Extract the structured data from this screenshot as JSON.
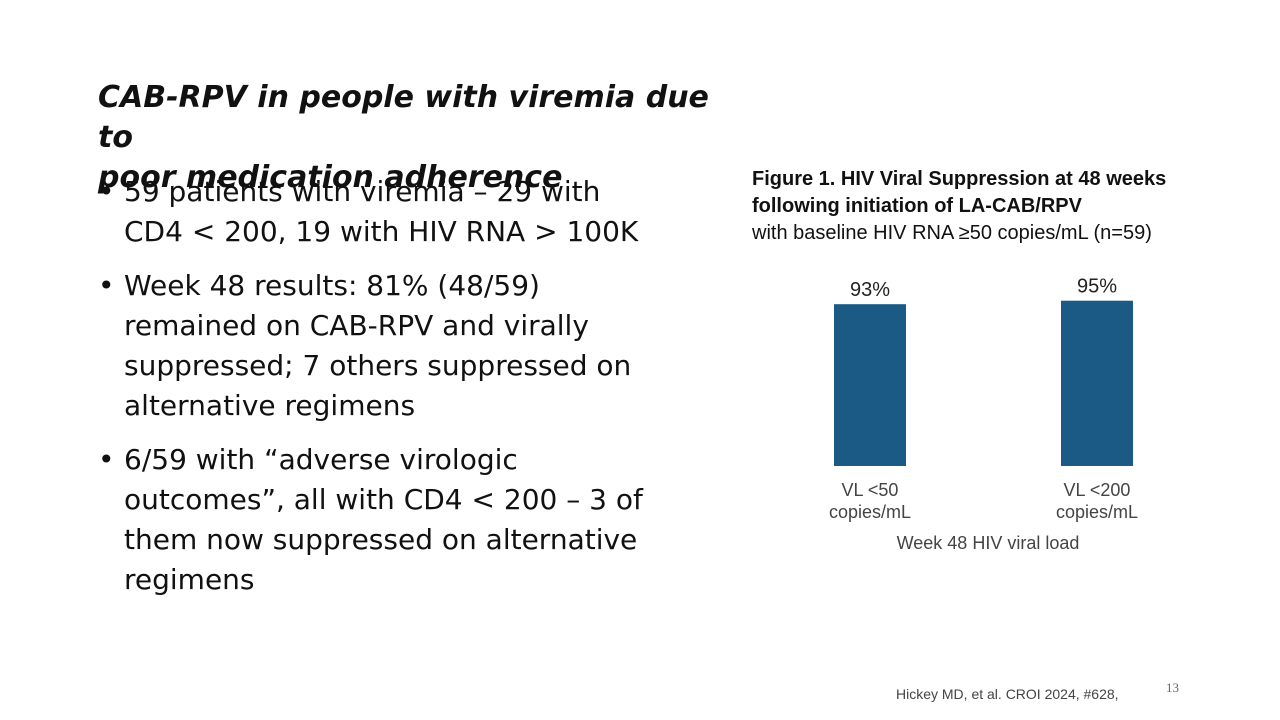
{
  "slide": {
    "title_line1": "CAB-RPV in people with viremia due to",
    "title_line2": "poor medication adherence",
    "bullets": [
      {
        "line1": "59 patients with viremia – 29 with",
        "line2": "CD4 < 200, 19 with HIV RNA > 100K"
      },
      {
        "line1": "Week 48 results:  81% (48/59)",
        "line2": "remained on CAB-RPV and virally",
        "line3": "suppressed; 7 others suppressed on",
        "line4": "alternative regimens"
      },
      {
        "line1": "6/59 with “adverse virologic",
        "line2": "outcomes”, all with CD4 < 200 – 3 of",
        "line3": "them now suppressed on alternative",
        "line4": "regimens"
      }
    ],
    "citation": "Hickey MD, et al. CROI 2024, #628,",
    "page_number": "13"
  },
  "chart_data": {
    "type": "bar",
    "title_line1": "Figure 1. HIV Viral Suppression at 48 weeks",
    "title_line2": "following initiation of LA-CAB/RPV",
    "subtitle": "with baseline HIV RNA ≥50 copies/mL (n=59)",
    "categories": [
      {
        "line1": "VL <50",
        "line2": "copies/mL"
      },
      {
        "line1": "VL <200",
        "line2": "copies/mL"
      }
    ],
    "values": [
      93,
      95
    ],
    "data_labels": [
      "93%",
      "95%"
    ],
    "xlabel": "Week 48 HIV viral load",
    "ylabel": "",
    "ylim": [
      0,
      100
    ],
    "grid": false,
    "bar_color": "#1b5a85"
  }
}
